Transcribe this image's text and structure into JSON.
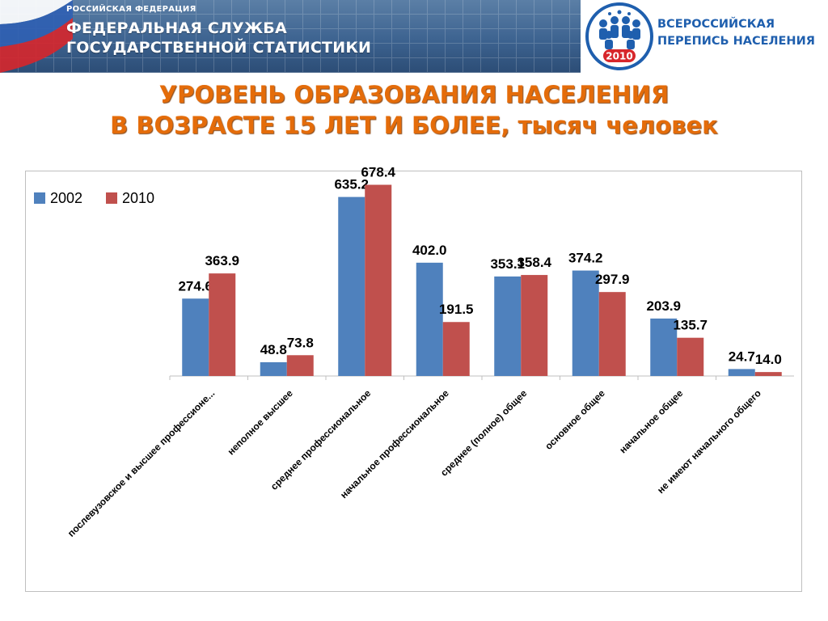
{
  "header": {
    "agency_small": "РОССИЙСКАЯ ФЕДЕРАЦИЯ",
    "agency_line1": "ФЕДЕРАЛЬНАЯ СЛУЖБА",
    "agency_line2": "ГОСУДАРСТВЕННОЙ СТАТИСТИКИ",
    "census_line1": "ВСЕРОССИЙСКАЯ",
    "census_line2": "ПЕРЕПИСЬ НАСЕЛЕНИЯ",
    "census_year": "2010"
  },
  "title": {
    "line1": "УРОВЕНЬ ОБРАЗОВАНИЯ НАСЕЛЕНИЯ",
    "line2": "В ВОЗРАСТЕ 15 ЛЕТ И БОЛЕЕ, тысяч человек"
  },
  "colors": {
    "series_2002": "#4f81bd",
    "series_2010": "#c0504d",
    "title": "#e46c0a"
  },
  "chart_data": {
    "type": "bar",
    "title": "",
    "xlabel": "",
    "ylabel": "",
    "ylim": [
      0,
      700
    ],
    "grid": false,
    "legend": "top-left",
    "categories": [
      "послевузовское и высшее профессионе...",
      "неполное высшее",
      "среднее профессиональное",
      "начальное профессиональное",
      "среднее (полное) общее",
      "основное общее",
      "начальное общее",
      "не имеют начального общего"
    ],
    "series": [
      {
        "name": "2002",
        "values": [
          274.6,
          48.8,
          635.2,
          402.0,
          353.1,
          374.2,
          203.9,
          24.7
        ]
      },
      {
        "name": "2010",
        "values": [
          363.9,
          73.8,
          678.4,
          191.5,
          358.4,
          297.9,
          135.7,
          14.0
        ]
      }
    ]
  }
}
